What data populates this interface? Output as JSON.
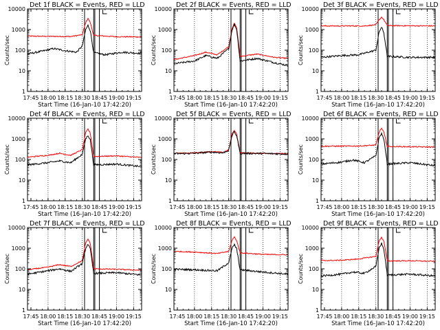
{
  "figure": {
    "ylabel": "Counts/sec",
    "xlabel": "Start Time (16-Jan-10 17:42:20)",
    "xticks": [
      "17:45",
      "18:00",
      "18:15",
      "18:30",
      "18:45",
      "19:00",
      "19:15"
    ],
    "yticks": [
      "1",
      "10",
      "100",
      "1000",
      "10000"
    ],
    "colors": {
      "events": "#000000",
      "lld": "#ff0000",
      "frame": "#000000"
    }
  },
  "chart_data": [
    {
      "type": "line",
      "title": "Det 1f BLACK = Events, RED = LLD",
      "xlabel": "Start Time (16-Jan-10 17:42:20)",
      "ylabel": "Counts/sec",
      "xlim": [
        "17:42",
        "19:22"
      ],
      "ylim": [
        1,
        10000
      ],
      "yscale": "log",
      "series": [
        {
          "name": "LLD",
          "color": "#ff0000",
          "values": [
            [
              "17:42",
              480
            ],
            [
              "18:00",
              470
            ],
            [
              "18:20",
              460
            ],
            [
              "18:30",
              560
            ],
            [
              "18:33",
              2200
            ],
            [
              "18:35",
              3500
            ],
            [
              "18:37",
              2200
            ],
            [
              "18:40",
              520
            ],
            [
              "19:00",
              450
            ],
            [
              "19:22",
              440
            ]
          ]
        },
        {
          "name": "Events",
          "color": "#000000",
          "values": [
            [
              "17:42",
              65
            ],
            [
              "17:55",
              90
            ],
            [
              "18:05",
              120
            ],
            [
              "18:15",
              95
            ],
            [
              "18:25",
              80
            ],
            [
              "18:30",
              160
            ],
            [
              "18:33",
              1000
            ],
            [
              "18:35",
              1600
            ],
            [
              "18:37",
              900
            ],
            [
              "18:40",
              75
            ],
            [
              "18:50",
              60
            ],
            [
              "19:05",
              80
            ],
            [
              "19:22",
              70
            ]
          ]
        }
      ]
    },
    {
      "type": "line",
      "title": "Det 2f BLACK = Events, RED = LLD",
      "xlabel": "Start Time (16-Jan-10 17:42:20)",
      "ylabel": "Counts/sec",
      "xlim": [
        "17:42",
        "19:22"
      ],
      "ylim": [
        1,
        10000
      ],
      "yscale": "log",
      "series": [
        {
          "name": "LLD",
          "color": "#ff0000",
          "values": [
            [
              "17:42",
              35
            ],
            [
              "18:00",
              55
            ],
            [
              "18:10",
              80
            ],
            [
              "18:20",
              60
            ],
            [
              "18:30",
              150
            ],
            [
              "18:33",
              1200
            ],
            [
              "18:35",
              2000
            ],
            [
              "18:37",
              1200
            ],
            [
              "18:40",
              50
            ],
            [
              "18:55",
              65
            ],
            [
              "19:10",
              45
            ],
            [
              "19:22",
              40
            ]
          ]
        },
        {
          "name": "Events",
          "color": "#000000",
          "values": [
            [
              "17:42",
              22
            ],
            [
              "18:00",
              30
            ],
            [
              "18:10",
              55
            ],
            [
              "18:20",
              40
            ],
            [
              "18:30",
              120
            ],
            [
              "18:33",
              1000
            ],
            [
              "18:35",
              1800
            ],
            [
              "18:37",
              1000
            ],
            [
              "18:40",
              30
            ],
            [
              "18:55",
              40
            ],
            [
              "19:10",
              25
            ],
            [
              "19:22",
              18
            ]
          ]
        }
      ]
    },
    {
      "type": "line",
      "title": "Det 3f BLACK = Events, RED = LLD",
      "xlabel": "Start Time (16-Jan-10 17:42:20)",
      "ylabel": "Counts/sec",
      "xlim": [
        "17:42",
        "19:22"
      ],
      "ylim": [
        1,
        10000
      ],
      "yscale": "log",
      "series": [
        {
          "name": "LLD",
          "color": "#ff0000",
          "values": [
            [
              "17:42",
              1500
            ],
            [
              "18:20",
              1500
            ],
            [
              "18:30",
              1700
            ],
            [
              "18:33",
              3000
            ],
            [
              "18:35",
              4000
            ],
            [
              "18:37",
              3000
            ],
            [
              "18:40",
              1550
            ],
            [
              "19:22",
              1500
            ]
          ]
        },
        {
          "name": "Events",
          "color": "#000000",
          "values": [
            [
              "17:42",
              45
            ],
            [
              "18:00",
              55
            ],
            [
              "18:15",
              60
            ],
            [
              "18:30",
              100
            ],
            [
              "18:33",
              800
            ],
            [
              "18:35",
              1300
            ],
            [
              "18:37",
              700
            ],
            [
              "18:40",
              50
            ],
            [
              "19:00",
              45
            ],
            [
              "19:22",
              45
            ]
          ]
        }
      ]
    },
    {
      "type": "line",
      "title": "Det 4f BLACK = Events, RED = LLD",
      "xlabel": "Start Time (16-Jan-10 17:42:20)",
      "ylabel": "Counts/sec",
      "xlim": [
        "17:42",
        "19:22"
      ],
      "ylim": [
        1,
        10000
      ],
      "yscale": "log",
      "series": [
        {
          "name": "LLD",
          "color": "#ff0000",
          "values": [
            [
              "17:42",
              130
            ],
            [
              "18:00",
              160
            ],
            [
              "18:10",
              200
            ],
            [
              "18:20",
              160
            ],
            [
              "18:30",
              300
            ],
            [
              "18:33",
              2000
            ],
            [
              "18:35",
              3000
            ],
            [
              "18:37",
              1900
            ],
            [
              "18:40",
              140
            ],
            [
              "19:00",
              150
            ],
            [
              "19:22",
              125
            ]
          ]
        },
        {
          "name": "Events",
          "color": "#000000",
          "values": [
            [
              "17:42",
              55
            ],
            [
              "18:00",
              70
            ],
            [
              "18:10",
              85
            ],
            [
              "18:20",
              70
            ],
            [
              "18:30",
              180
            ],
            [
              "18:33",
              1000
            ],
            [
              "18:35",
              1500
            ],
            [
              "18:37",
              900
            ],
            [
              "18:40",
              55
            ],
            [
              "19:00",
              60
            ],
            [
              "19:22",
              45
            ]
          ]
        }
      ]
    },
    {
      "type": "line",
      "title": "Det 5f BLACK = Events, RED = LLD",
      "xlabel": "Start Time (16-Jan-10 17:42:20)",
      "ylabel": "Counts/sec",
      "xlim": [
        "17:42",
        "19:22"
      ],
      "ylim": [
        1,
        10000
      ],
      "yscale": "log",
      "series": [
        {
          "name": "LLD",
          "color": "#ff0000",
          "values": [
            [
              "17:42",
              200
            ],
            [
              "18:00",
              210
            ],
            [
              "18:15",
              240
            ],
            [
              "18:25",
              220
            ],
            [
              "18:30",
              300
            ],
            [
              "18:33",
              1800
            ],
            [
              "18:35",
              2600
            ],
            [
              "18:37",
              1700
            ],
            [
              "18:40",
              210
            ],
            [
              "19:00",
              200
            ],
            [
              "19:22",
              190
            ]
          ]
        },
        {
          "name": "Events",
          "color": "#000000",
          "values": [
            [
              "17:42",
              190
            ],
            [
              "18:00",
              200
            ],
            [
              "18:15",
              230
            ],
            [
              "18:25",
              210
            ],
            [
              "18:30",
              280
            ],
            [
              "18:33",
              1500
            ],
            [
              "18:35",
              2200
            ],
            [
              "18:37",
              1400
            ],
            [
              "18:40",
              200
            ],
            [
              "19:00",
              195
            ],
            [
              "19:22",
              185
            ]
          ]
        }
      ]
    },
    {
      "type": "line",
      "title": "Det 6f BLACK = Events, RED = LLD",
      "xlabel": "Start Time (16-Jan-10 17:42:20)",
      "ylabel": "Counts/sec",
      "xlim": [
        "17:42",
        "19:22"
      ],
      "ylim": [
        1,
        10000
      ],
      "yscale": "log",
      "series": [
        {
          "name": "LLD",
          "color": "#ff0000",
          "values": [
            [
              "17:42",
              440
            ],
            [
              "18:15",
              450
            ],
            [
              "18:30",
              500
            ],
            [
              "18:33",
              2200
            ],
            [
              "18:35",
              3300
            ],
            [
              "18:37",
              2100
            ],
            [
              "18:40",
              430
            ],
            [
              "19:22",
              400
            ]
          ]
        },
        {
          "name": "Events",
          "color": "#000000",
          "values": [
            [
              "17:42",
              60
            ],
            [
              "18:00",
              75
            ],
            [
              "18:10",
              95
            ],
            [
              "18:20",
              70
            ],
            [
              "18:30",
              150
            ],
            [
              "18:33",
              1200
            ],
            [
              "18:35",
              1800
            ],
            [
              "18:37",
              1000
            ],
            [
              "18:40",
              60
            ],
            [
              "19:00",
              70
            ],
            [
              "19:22",
              50
            ]
          ]
        }
      ]
    },
    {
      "type": "line",
      "title": "Det 7f BLACK = Events, RED = LLD",
      "xlabel": "Start Time (16-Jan-10 17:42:20)",
      "ylabel": "Counts/sec",
      "xlim": [
        "17:42",
        "19:22"
      ],
      "ylim": [
        1,
        10000
      ],
      "yscale": "log",
      "series": [
        {
          "name": "LLD",
          "color": "#ff0000",
          "values": [
            [
              "17:42",
              90
            ],
            [
              "18:00",
              120
            ],
            [
              "18:10",
              160
            ],
            [
              "18:20",
              130
            ],
            [
              "18:30",
              250
            ],
            [
              "18:33",
              1800
            ],
            [
              "18:35",
              2800
            ],
            [
              "18:37",
              1700
            ],
            [
              "18:40",
              100
            ],
            [
              "19:00",
              95
            ],
            [
              "19:22",
              85
            ]
          ]
        },
        {
          "name": "Events",
          "color": "#000000",
          "values": [
            [
              "17:42",
              55
            ],
            [
              "18:00",
              80
            ],
            [
              "18:10",
              100
            ],
            [
              "18:20",
              75
            ],
            [
              "18:30",
              180
            ],
            [
              "18:33",
              1000
            ],
            [
              "18:35",
              1600
            ],
            [
              "18:37",
              900
            ],
            [
              "18:40",
              60
            ],
            [
              "19:00",
              65
            ],
            [
              "19:22",
              50
            ]
          ]
        }
      ]
    },
    {
      "type": "line",
      "title": "Det 8f BLACK = Events, RED = LLD",
      "xlabel": "Start Time (16-Jan-10 17:42:20)",
      "ylabel": "Counts/sec",
      "xlim": [
        "17:42",
        "19:22"
      ],
      "ylim": [
        1,
        10000
      ],
      "yscale": "log",
      "series": [
        {
          "name": "LLD",
          "color": "#ff0000",
          "values": [
            [
              "17:42",
              700
            ],
            [
              "18:00",
              650
            ],
            [
              "18:20",
              550
            ],
            [
              "18:30",
              700
            ],
            [
              "18:33",
              2500
            ],
            [
              "18:35",
              3500
            ],
            [
              "18:37",
              2300
            ],
            [
              "18:40",
              600
            ],
            [
              "19:00",
              500
            ],
            [
              "19:22",
              480
            ]
          ]
        },
        {
          "name": "Events",
          "color": "#000000",
          "values": [
            [
              "17:42",
              95
            ],
            [
              "18:00",
              90
            ],
            [
              "18:20",
              80
            ],
            [
              "18:30",
              200
            ],
            [
              "18:33",
              1000
            ],
            [
              "18:35",
              1500
            ],
            [
              "18:37",
              900
            ],
            [
              "18:40",
              90
            ],
            [
              "19:00",
              70
            ],
            [
              "19:22",
              55
            ]
          ]
        }
      ]
    },
    {
      "type": "line",
      "title": "Det 9f BLACK = Events, RED = LLD",
      "xlabel": "Start Time (16-Jan-10 17:42:20)",
      "ylabel": "Counts/sec",
      "xlim": [
        "17:42",
        "19:22"
      ],
      "ylim": [
        1,
        10000
      ],
      "yscale": "log",
      "series": [
        {
          "name": "LLD",
          "color": "#ff0000",
          "values": [
            [
              "17:42",
              250
            ],
            [
              "18:00",
              260
            ],
            [
              "18:15",
              300
            ],
            [
              "18:30",
              400
            ],
            [
              "18:33",
              2400
            ],
            [
              "18:35",
              3300
            ],
            [
              "18:37",
              2200
            ],
            [
              "18:40",
              240
            ],
            [
              "19:00",
              245
            ],
            [
              "19:22",
              230
            ]
          ]
        },
        {
          "name": "Events",
          "color": "#000000",
          "values": [
            [
              "17:42",
              45
            ],
            [
              "18:00",
              55
            ],
            [
              "18:10",
              70
            ],
            [
              "18:20",
              60
            ],
            [
              "18:30",
              130
            ],
            [
              "18:33",
              1100
            ],
            [
              "18:35",
              1700
            ],
            [
              "18:37",
              900
            ],
            [
              "18:40",
              50
            ],
            [
              "19:00",
              55
            ],
            [
              "19:22",
              45
            ]
          ]
        }
      ]
    }
  ]
}
